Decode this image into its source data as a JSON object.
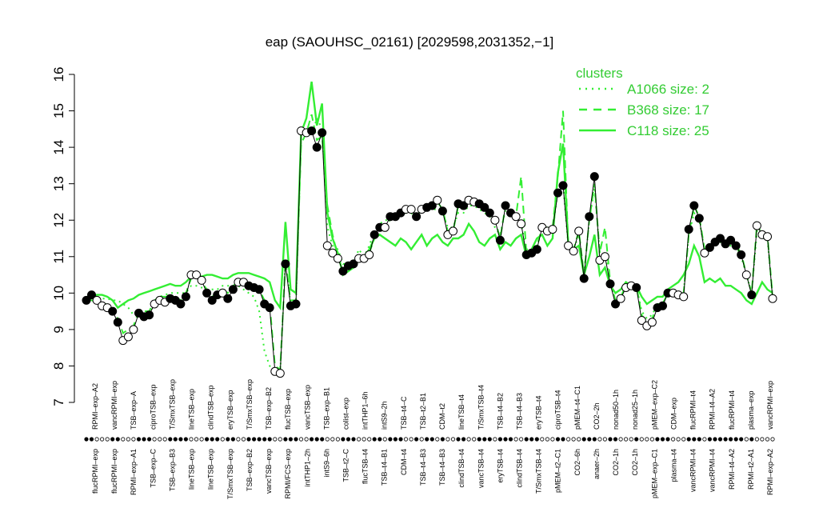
{
  "chart_data": {
    "type": "line",
    "title": "eap (SAOUHSC_02161) [2029598,2031352,−1]",
    "ylim": [
      7,
      16
    ],
    "yticks": [
      7,
      8,
      9,
      10,
      11,
      12,
      13,
      14,
      15,
      16
    ],
    "grid": false,
    "legend": {
      "title": "clusters",
      "placement": "top-right",
      "items": [
        {
          "label": "A1066 size: 2",
          "style": "dotted"
        },
        {
          "label": "B368 size: 17",
          "style": "dashed"
        },
        {
          "label": "C118 size: 25",
          "style": "solid"
        }
      ]
    },
    "colors": {
      "cluster": "#33ee33",
      "main": "#000000",
      "legend": "#33cc33"
    },
    "labels_top": [
      "RPMI–exp–A2",
      "vancRPMI–exp",
      "TSB–exp–A",
      "ciproTSB–exp",
      "T/SmxTSB–exp",
      "lineTSB–exp",
      "clindTSB–exp",
      "eryTSB–exp",
      "T/SmxTSB–exp",
      "TSB–exp–B2",
      "flucTSB–exp",
      "vancTSB–exp",
      "TSB–exp–B1",
      "colist–exp",
      "intTHP1–6h",
      "intS9–2h",
      "TSB–t4–C",
      "TSB–t2–B1",
      "CDM–t2",
      "lineTSB–t4",
      "T/SmxTSB–t4",
      "TSB–t4–B2",
      "TSB–t4–B3",
      "eryTSB–t4",
      "ciproTSB–t4",
      "pMEM–t4–C1",
      "CO2–2h",
      "nonad50–1h",
      "nonad25–1h",
      "pMEM–exp–C2",
      "CDM–exp",
      "flucRPMI–t4",
      "RPMI–t4–A2",
      "flucRPMI–t4",
      "plasma–exp",
      "vancRPMI–exp"
    ],
    "labels_bottom": [
      "flucRPMI–exp",
      "flucRPMI–exp",
      "RPMI–exp–A1",
      "TSB–exp–C",
      "TSB–exp–B3",
      "lineTSB–exp",
      "lineTSB–exp",
      "T/SmxTSB–exp",
      "TSB–exp–B2",
      "vancTSB–exp",
      "RPMI/FCS–exp",
      "intTHP1–2h",
      "intS9–6h",
      "TSB–t2–C",
      "flucTSB–t4",
      "TSB–t4–B1",
      "CDM–t4",
      "TSB–t4–B3",
      "TSB–t4–B3",
      "clindTSB–t4",
      "vancTSB–t4",
      "eryTSB–t4",
      "clindTSB–t4",
      "T/SmxTSB–t4",
      "pMEM–t2–C1",
      "CO2–6h",
      "anaer–2h",
      "CO2–1h",
      "CO2–1h",
      "pMEM–exp–C1",
      "plasma–t4",
      "vancRPMI–t4",
      "vancRPMI–t4",
      "RPMI–t4–A2",
      "RPMI–t2–A1",
      "RPMI–exp–A2"
    ],
    "main_values": [
      9.8,
      9.95,
      9.8,
      9.65,
      9.6,
      9.5,
      9.2,
      8.7,
      8.8,
      9.0,
      9.45,
      9.35,
      9.4,
      9.7,
      9.8,
      9.75,
      9.85,
      9.8,
      9.7,
      9.9,
      10.5,
      10.5,
      10.35,
      10.0,
      9.8,
      9.95,
      10.0,
      9.85,
      10.1,
      10.3,
      10.3,
      10.2,
      10.15,
      10.1,
      9.7,
      9.6,
      7.85,
      7.8,
      10.8,
      9.65,
      9.7,
      14.45,
      14.4,
      14.45,
      14.0,
      14.4,
      11.3,
      11.1,
      10.95,
      10.6,
      10.75,
      10.8,
      10.95,
      10.95,
      11.05,
      11.6,
      11.8,
      11.8,
      12.1,
      12.1,
      12.2,
      12.3,
      12.3,
      12.1,
      12.3,
      12.35,
      12.4,
      12.55,
      12.25,
      11.6,
      11.7,
      12.45,
      12.4,
      12.55,
      12.5,
      12.45,
      12.35,
      12.2,
      12.0,
      11.45,
      12.4,
      12.2,
      12.1,
      11.9,
      11.05,
      11.1,
      11.2,
      11.8,
      11.7,
      11.75,
      12.75,
      12.95,
      11.3,
      11.15,
      11.7,
      10.4,
      12.1,
      13.2,
      10.9,
      11.0,
      10.25,
      9.7,
      9.85,
      10.15,
      10.2,
      10.15,
      9.25,
      9.1,
      9.2,
      9.6,
      9.65,
      10.0,
      10.0,
      9.95,
      9.9,
      11.75,
      12.4,
      12.05,
      11.1,
      11.25,
      11.4,
      11.5,
      11.35,
      11.45,
      11.3,
      11.05,
      10.5,
      9.95,
      11.85,
      11.6,
      11.55,
      9.85
    ],
    "cluster_values": {
      "A1066": [
        9.9,
        9.9,
        9.85,
        9.85,
        9.85,
        9.8,
        9.8,
        9.7,
        9.6,
        9.4,
        9.5,
        9.5,
        9.5,
        9.7,
        9.9,
        9.95,
        10.0,
        10.0,
        10.0,
        10.0,
        10.2,
        10.2,
        10.15,
        10.1,
        10.1,
        10.1,
        10.2,
        10.2,
        10.2,
        10.2,
        10.1,
        10.0,
        9.9,
        9.5,
        8.4,
        8.0,
        7.9,
        7.8,
        10.9,
        9.7,
        9.7,
        14.3,
        14.5,
        14.3,
        14.8,
        14.5,
        11.8,
        11.3,
        11.2,
        10.8,
        10.8,
        10.8,
        11.2,
        11.0,
        11.3,
        11.7,
        11.9,
        12.0,
        12.0,
        12.1,
        12.1,
        12.2,
        12.2,
        12.0,
        12.3,
        12.3,
        12.3,
        12.3,
        12.2,
        11.8,
        11.8,
        12.2,
        12.2,
        12.4,
        12.4,
        12.3,
        12.2,
        12.1,
        11.8,
        11.6,
        12.3,
        12.2,
        12.1,
        11.9,
        11.2,
        11.2,
        11.3,
        11.7,
        11.7,
        11.7,
        12.8,
        13.0,
        11.3,
        11.2,
        11.6,
        10.5,
        12.0,
        12.9,
        11.1,
        11.1,
        10.3,
        9.8,
        9.9,
        10.2,
        10.2,
        10.2,
        9.5,
        9.3,
        9.4,
        9.7,
        9.7,
        10.0,
        10.0,
        10.0,
        10.0,
        11.6,
        12.2,
        12.0,
        11.2,
        11.3,
        11.3,
        11.4,
        11.3,
        11.3,
        11.3,
        11.0,
        10.5,
        10.0,
        11.7,
        11.5,
        11.5,
        9.9
      ],
      "B368": [
        9.85,
        9.8,
        9.75,
        9.7,
        9.7,
        9.55,
        9.3,
        8.9,
        9.0,
        9.1,
        9.5,
        9.5,
        9.5,
        9.8,
        9.9,
        9.9,
        9.9,
        9.9,
        9.8,
        10.0,
        10.4,
        10.5,
        10.3,
        10.1,
        9.9,
        10.0,
        10.1,
        10.0,
        10.2,
        10.3,
        10.3,
        10.2,
        10.2,
        10.1,
        9.8,
        9.7,
        8.0,
        7.9,
        10.9,
        9.8,
        9.8,
        14.1,
        14.4,
        14.9,
        14.2,
        14.3,
        12.4,
        11.6,
        11.0,
        10.6,
        10.8,
        10.9,
        10.9,
        11.0,
        11.1,
        11.5,
        11.8,
        11.9,
        12.0,
        12.1,
        12.2,
        12.2,
        12.3,
        12.1,
        12.3,
        12.3,
        12.4,
        12.5,
        12.3,
        11.7,
        11.7,
        12.4,
        12.4,
        12.5,
        12.5,
        12.4,
        12.3,
        12.2,
        12.0,
        11.5,
        12.4,
        12.3,
        12.1,
        13.2,
        11.1,
        11.2,
        11.3,
        11.8,
        11.8,
        11.8,
        13.2,
        15.0,
        11.3,
        11.2,
        11.7,
        10.5,
        12.0,
        13.0,
        11.1,
        11.8,
        10.3,
        9.8,
        9.9,
        10.2,
        10.2,
        10.2,
        9.4,
        9.2,
        9.3,
        9.7,
        9.7,
        10.0,
        10.0,
        10.0,
        10.0,
        11.6,
        12.4,
        12.1,
        11.2,
        11.3,
        11.4,
        11.5,
        11.4,
        11.5,
        11.3,
        11.1,
        10.5,
        10.0,
        11.9,
        11.6,
        11.6,
        9.9
      ],
      "C118": [
        9.85,
        9.9,
        9.95,
        9.95,
        9.9,
        9.8,
        9.6,
        9.7,
        9.8,
        9.85,
        9.95,
        10.0,
        10.05,
        10.1,
        10.15,
        10.2,
        10.25,
        10.2,
        10.2,
        10.3,
        10.45,
        10.5,
        10.45,
        10.5,
        10.5,
        10.45,
        10.4,
        10.4,
        10.5,
        10.55,
        10.55,
        10.55,
        10.5,
        10.45,
        10.4,
        10.3,
        9.8,
        9.6,
        11.95,
        10.1,
        10.0,
        14.4,
        14.8,
        15.8,
        14.6,
        15.2,
        12.2,
        11.5,
        11.1,
        10.5,
        10.6,
        10.7,
        10.9,
        11.0,
        11.2,
        11.5,
        11.6,
        11.5,
        11.4,
        11.3,
        11.5,
        11.4,
        11.2,
        11.4,
        11.6,
        11.3,
        11.5,
        11.6,
        11.4,
        11.3,
        11.5,
        11.5,
        11.6,
        11.9,
        11.7,
        11.4,
        11.3,
        11.5,
        11.6,
        11.2,
        11.4,
        11.3,
        11.5,
        11.6,
        11.0,
        11.2,
        11.5,
        11.6,
        11.3,
        11.5,
        13.3,
        14.1,
        11.3,
        11.2,
        11.3,
        10.5,
        11.0,
        11.6,
        10.5,
        10.7,
        10.2,
        10.0,
        10.1,
        10.3,
        10.2,
        10.2,
        9.9,
        9.7,
        9.8,
        9.9,
        9.9,
        10.1,
        10.2,
        10.3,
        10.5,
        10.8,
        11.3,
        11.0,
        10.3,
        10.4,
        10.3,
        10.4,
        10.2,
        10.2,
        10.1,
        10.0,
        9.8,
        9.7,
        10.0,
        10.3,
        10.1,
        10.0
      ]
    },
    "marker_filled": [
      true,
      true,
      false,
      false,
      false,
      true,
      true,
      false,
      false,
      false,
      true,
      true,
      true,
      false,
      false,
      false,
      true,
      true,
      true,
      true,
      false,
      false,
      false,
      true,
      true,
      true,
      false,
      true,
      true,
      false,
      false,
      true,
      true,
      true,
      true,
      true,
      false,
      false,
      true,
      true,
      true,
      false,
      false,
      true,
      true,
      true,
      false,
      false,
      false,
      true,
      true,
      true,
      false,
      false,
      false,
      true,
      true,
      false,
      true,
      true,
      true,
      false,
      false,
      true,
      false,
      true,
      true,
      false,
      true,
      false,
      false,
      true,
      true,
      false,
      false,
      true,
      true,
      true,
      false,
      true,
      true,
      true,
      false,
      false,
      true,
      true,
      true,
      false,
      false,
      false,
      true,
      true,
      false,
      false,
      false,
      true,
      true,
      true,
      false,
      false,
      true,
      true,
      false,
      false,
      false,
      true,
      false,
      false,
      false,
      true,
      true,
      true,
      false,
      false,
      false,
      true,
      true,
      true,
      false,
      true,
      true,
      true,
      true,
      true,
      true,
      true,
      false,
      true,
      false,
      false,
      false,
      false
    ]
  }
}
